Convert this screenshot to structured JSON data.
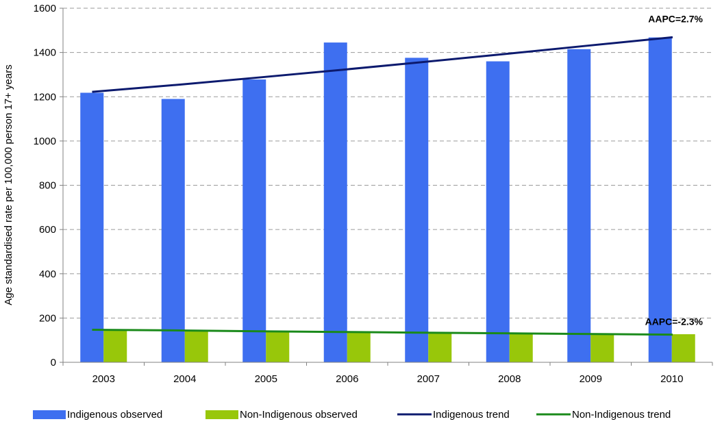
{
  "chart_data": {
    "type": "bar",
    "ylabel": "Age standardised rate per 100,000 person 17+ years",
    "xlabel": "",
    "ylim": [
      0,
      1600
    ],
    "yticks": [
      0,
      200,
      400,
      600,
      800,
      1000,
      1200,
      1400,
      1600
    ],
    "grid": "horizontal dashed",
    "legend_position": "bottom",
    "categories": [
      "2003",
      "2004",
      "2005",
      "2006",
      "2007",
      "2008",
      "2009",
      "2010"
    ],
    "series": [
      {
        "name": "Indigenous observed",
        "kind": "bar",
        "color": "#3e6ff0",
        "values": [
          1218,
          1190,
          1278,
          1445,
          1376,
          1360,
          1415,
          1468
        ]
      },
      {
        "name": "Non-Indigenous observed",
        "kind": "bar",
        "color": "#98c70a",
        "values": [
          143,
          141,
          138,
          140,
          132,
          130,
          128,
          127
        ]
      },
      {
        "name": "Indigenous trend",
        "kind": "line",
        "color": "#0c1a6e",
        "values": [
          1222,
          1255,
          1288,
          1322,
          1357,
          1393,
          1430,
          1469
        ]
      },
      {
        "name": "Non-Indigenous trend",
        "kind": "line",
        "color": "#1a8a1a",
        "values": [
          147,
          144,
          140,
          137,
          134,
          131,
          128,
          125
        ]
      }
    ],
    "annotations": [
      {
        "text": "AAPC=2.7%",
        "series": "Indigenous trend"
      },
      {
        "text": "AAPC=-2.3%",
        "series": "Non-Indigenous trend"
      }
    ]
  }
}
